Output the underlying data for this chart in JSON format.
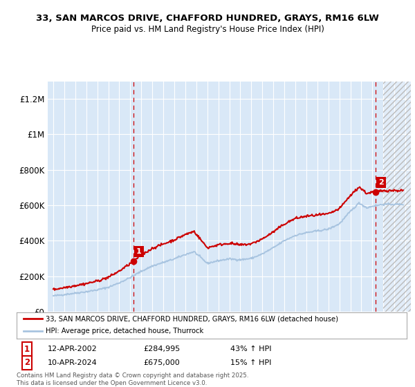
{
  "title_line1": "33, SAN MARCOS DRIVE, CHAFFORD HUNDRED, GRAYS, RM16 6LW",
  "title_line2": "Price paid vs. HM Land Registry's House Price Index (HPI)",
  "ylim": [
    0,
    1300000
  ],
  "xlim_start": 1994.5,
  "xlim_end": 2027.5,
  "yticks": [
    0,
    200000,
    400000,
    600000,
    800000,
    1000000,
    1200000
  ],
  "ytick_labels": [
    "£0",
    "£200K",
    "£400K",
    "£600K",
    "£800K",
    "£1M",
    "£1.2M"
  ],
  "xticks": [
    1995,
    1996,
    1997,
    1998,
    1999,
    2000,
    2001,
    2002,
    2003,
    2004,
    2005,
    2006,
    2007,
    2008,
    2009,
    2010,
    2011,
    2012,
    2013,
    2014,
    2015,
    2016,
    2017,
    2018,
    2019,
    2020,
    2021,
    2022,
    2023,
    2024,
    2025,
    2026,
    2027
  ],
  "plot_bg_color": "#d9e8f7",
  "grid_color": "#ffffff",
  "hpi_line_color": "#a8c4e0",
  "price_line_color": "#cc0000",
  "transaction1_x": 2002.29,
  "transaction1_y": 284995,
  "transaction2_x": 2024.28,
  "transaction2_y": 675000,
  "vline_color": "#cc0000",
  "future_hatch_start": 2025.0,
  "legend_red_label": "33, SAN MARCOS DRIVE, CHAFFORD HUNDRED, GRAYS, RM16 6LW (detached house)",
  "legend_blue_label": "HPI: Average price, detached house, Thurrock",
  "annotation1_num": "1",
  "annotation1_date": "12-APR-2002",
  "annotation1_price": "£284,995",
  "annotation1_hpi": "43% ↑ HPI",
  "annotation2_num": "2",
  "annotation2_date": "10-APR-2024",
  "annotation2_price": "£675,000",
  "annotation2_hpi": "15% ↑ HPI",
  "footer": "Contains HM Land Registry data © Crown copyright and database right 2025.\nThis data is licensed under the Open Government Licence v3.0."
}
